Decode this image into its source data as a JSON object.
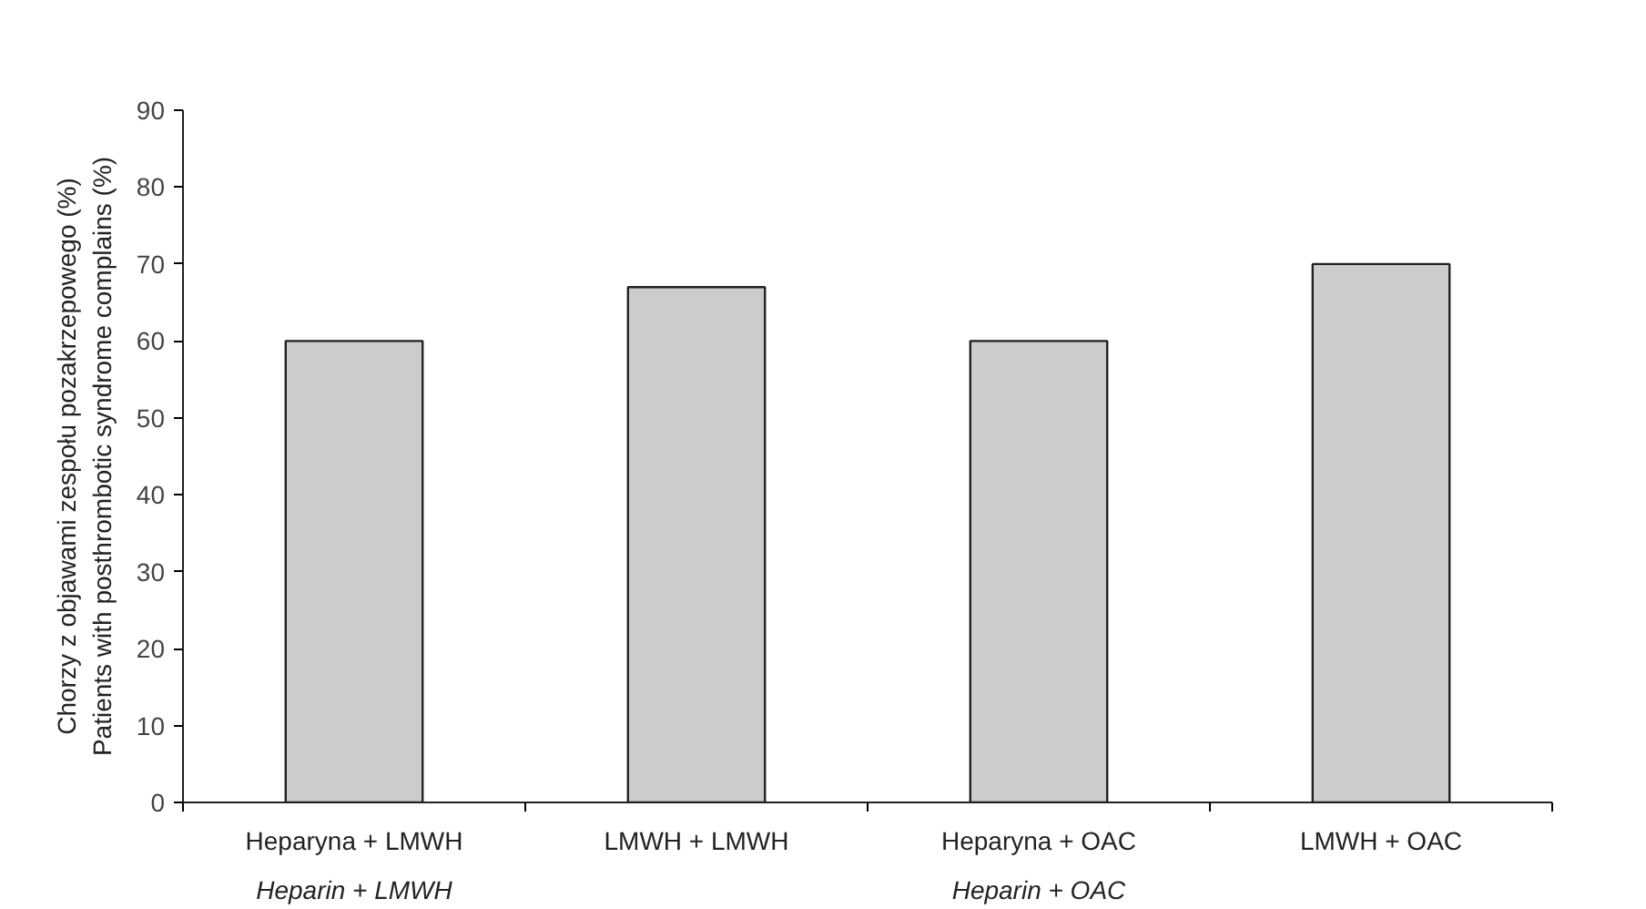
{
  "chart_data": {
    "type": "bar",
    "ylabel": "Chorzy z objawami zespołu pozakrzepowego (%)\nPatients with posthrombotic syndrome complains (%)",
    "categories": [
      "Heparyna + LMWH\nHeparin + LMWH",
      "LMWH + LMWH",
      "Heparyna + OAC\nHeparin + OAC",
      "LMWH + OAC"
    ],
    "values": [
      60,
      67,
      60,
      70
    ],
    "color": "#cccccc",
    "ylim": [
      0,
      90
    ],
    "yticks": [
      0,
      10,
      20,
      30,
      40,
      50,
      60,
      70,
      80,
      90
    ],
    "grid": false
  }
}
